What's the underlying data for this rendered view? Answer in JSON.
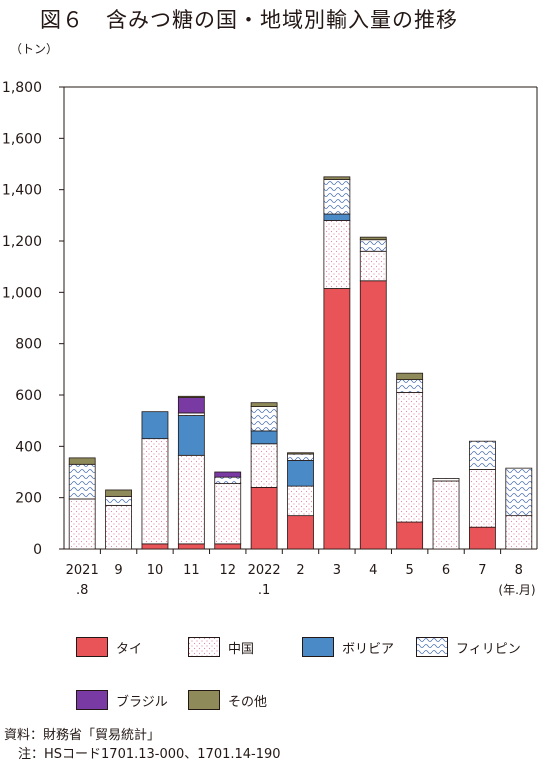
{
  "title": "図６　含みつ糖の国・地域別輸入量の推移",
  "unit": "（トン）",
  "x_unit_label": "(年.月)",
  "source": {
    "line1": "資料：財務省「貿易統計」",
    "line2": "注：HSコード1701.13-000、1701.14-190"
  },
  "colors": {
    "thai": "#e95459",
    "china": "#ffffff",
    "bolivia": "#4a8bc7",
    "philippines": "#ffffff",
    "brazil": "#7a3aa3",
    "other": "#8f8a5a",
    "axis": "#231815"
  },
  "chart_data": {
    "type": "bar",
    "stacked": true,
    "title": "図６　含みつ糖の国・地域別輸入量の推移",
    "ylabel": "（トン）",
    "xlabel": "(年.月)",
    "ylim": [
      0,
      1800
    ],
    "yticks": [
      "0",
      "200",
      "400",
      "600",
      "800",
      "1,000",
      "1,200",
      "1,400",
      "1,600",
      "1,800"
    ],
    "grid": false,
    "legend": "bottom",
    "categories": [
      [
        "2021",
        ".8"
      ],
      [
        "9",
        ""
      ],
      [
        "10",
        ""
      ],
      [
        "11",
        ""
      ],
      [
        "12",
        ""
      ],
      [
        "2022",
        ".1"
      ],
      [
        "2",
        ""
      ],
      [
        "3",
        ""
      ],
      [
        "4",
        ""
      ],
      [
        "5",
        ""
      ],
      [
        "6",
        ""
      ],
      [
        "7",
        ""
      ],
      [
        "8",
        ""
      ]
    ],
    "series": [
      {
        "key": "thai",
        "name": "タイ",
        "pattern": "solid",
        "values": [
          0,
          0,
          20,
          20,
          20,
          240,
          130,
          1015,
          1045,
          105,
          0,
          85,
          0
        ]
      },
      {
        "key": "china",
        "name": "中国",
        "pattern": "dots",
        "values": [
          195,
          170,
          410,
          345,
          235,
          170,
          115,
          265,
          115,
          505,
          265,
          225,
          130
        ]
      },
      {
        "key": "bolivia",
        "name": "ボリビア",
        "pattern": "solid",
        "values": [
          0,
          0,
          105,
          155,
          0,
          50,
          100,
          25,
          0,
          0,
          0,
          0,
          0
        ]
      },
      {
        "key": "philippines",
        "name": "フィリピン",
        "pattern": "waves",
        "values": [
          135,
          35,
          0,
          10,
          25,
          95,
          25,
          135,
          45,
          50,
          10,
          110,
          185
        ]
      },
      {
        "key": "brazil",
        "name": "ブラジル",
        "pattern": "solid",
        "values": [
          0,
          0,
          0,
          60,
          20,
          0,
          0,
          0,
          0,
          0,
          0,
          0,
          0
        ]
      },
      {
        "key": "other",
        "name": "その他",
        "pattern": "solid",
        "values": [
          25,
          25,
          0,
          5,
          0,
          15,
          5,
          10,
          10,
          25,
          0,
          0,
          0
        ]
      }
    ]
  }
}
